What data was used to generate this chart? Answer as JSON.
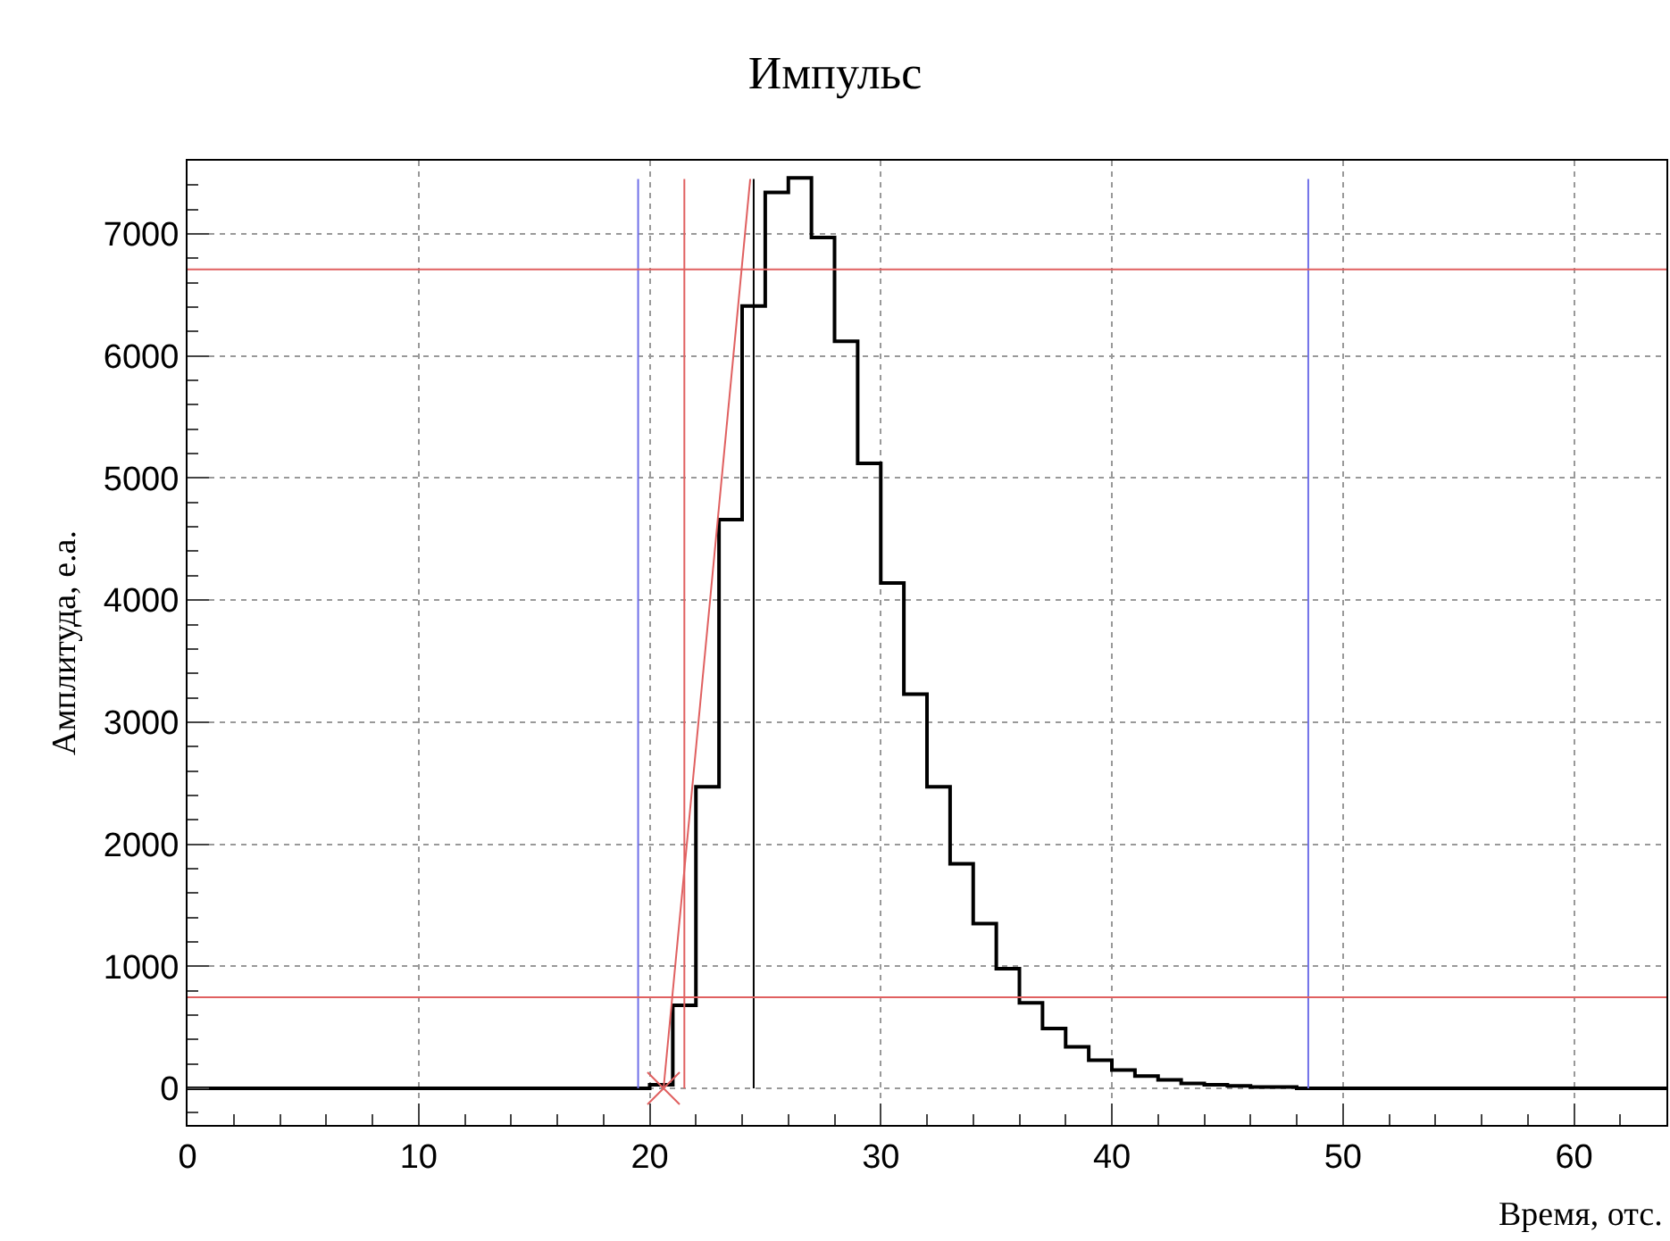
{
  "chart_data": {
    "type": "histogram",
    "title": "Импульс",
    "xlabel": "Время, отс.",
    "ylabel": "Амплитуда, е.а.",
    "xlim": [
      0,
      64
    ],
    "ylim": [
      -300,
      7600
    ],
    "xticks": [
      0,
      10,
      20,
      30,
      40,
      50,
      60
    ],
    "yticks": [
      0,
      1000,
      2000,
      3000,
      4000,
      5000,
      6000,
      7000
    ],
    "grid": true,
    "series": [
      {
        "color": "#000000",
        "bins": [
          0,
          1,
          2,
          3,
          4,
          5,
          6,
          7,
          8,
          9,
          10,
          11,
          12,
          13,
          14,
          15,
          16,
          17,
          18,
          19,
          20,
          21,
          22,
          23,
          24,
          25,
          26,
          27,
          28,
          29,
          30,
          31,
          32,
          33,
          34,
          35,
          36,
          37,
          38,
          39,
          40,
          41,
          42,
          43,
          44,
          45,
          46,
          47,
          48,
          49,
          50,
          51,
          52,
          53,
          54,
          55,
          56,
          57,
          58,
          59,
          60,
          61,
          62,
          63,
          64
        ],
        "values": [
          0,
          0,
          0,
          0,
          0,
          0,
          0,
          0,
          0,
          0,
          0,
          0,
          0,
          0,
          0,
          0,
          0,
          0,
          0,
          0,
          30,
          680,
          2470,
          4660,
          6410,
          7340,
          7460,
          6970,
          6120,
          5120,
          4140,
          3230,
          2470,
          1840,
          1350,
          980,
          700,
          490,
          340,
          230,
          150,
          100,
          70,
          40,
          30,
          20,
          10,
          10,
          0,
          0,
          0,
          0,
          0,
          0,
          0,
          0,
          0,
          0,
          0,
          0,
          0,
          0,
          0,
          0
        ]
      },
      {
        "type": "line",
        "color": "#7070e8",
        "x": [
          19.5,
          19.5
        ],
        "values": [
          0,
          7450
        ]
      },
      {
        "type": "line",
        "color": "#7070e8",
        "x": [
          48.5,
          48.5
        ],
        "values": [
          0,
          7450
        ]
      },
      {
        "type": "line",
        "color": "#e06060",
        "x": [
          21.5,
          21.5
        ],
        "values": [
          0,
          7450
        ]
      },
      {
        "type": "line",
        "color": "#000000",
        "x": [
          24.5,
          24.5
        ],
        "values": [
          0,
          7450
        ]
      },
      {
        "type": "line",
        "color": "#e06060",
        "x": [
          20.6,
          24.35
        ],
        "values": [
          0,
          7450
        ]
      },
      {
        "type": "scatter",
        "color": "#e06060",
        "marker": "cross",
        "x": [
          20.6
        ],
        "values": [
          0
        ]
      }
    ],
    "ref_lines": [
      {
        "axis": "y",
        "value": 6710,
        "color": "#e06060"
      },
      {
        "axis": "y",
        "value": 746,
        "color": "#e06060"
      }
    ]
  }
}
